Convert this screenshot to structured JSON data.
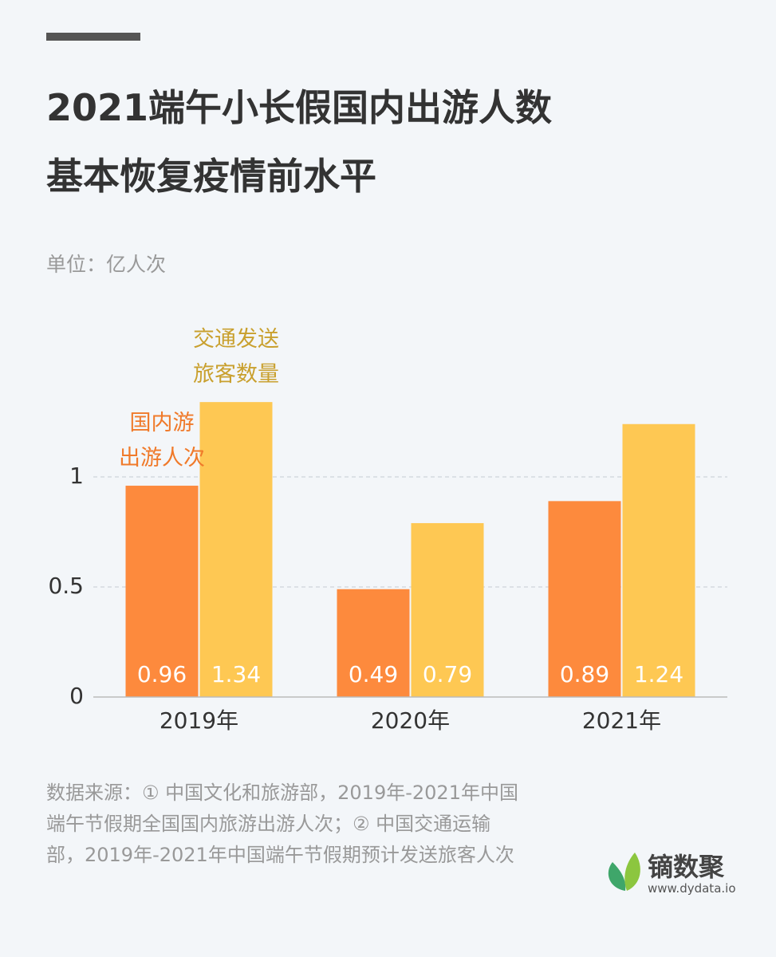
{
  "chart_data": {
    "type": "bar",
    "title": "2021端午小长假国内出游人数\n基本恢复疫情前水平",
    "unit": "单位：亿人次",
    "categories": [
      "2019年",
      "2020年",
      "2021年"
    ],
    "series": [
      {
        "name": "国内游\n出游人次",
        "color": "#fd8a3d",
        "label_color": "#f07a2a",
        "values": [
          0.96,
          0.49,
          0.89
        ]
      },
      {
        "name": "交通发送\n旅客数量",
        "color": "#fec853",
        "label_color": "#c9a02e",
        "values": [
          1.34,
          0.79,
          1.24
        ]
      }
    ],
    "ylim": [
      0,
      1.5
    ],
    "yticks": [
      0,
      0.5,
      1
    ],
    "grid": true,
    "source": "数据来源：① 中国文化和旅游部，2019年-2021年中国端午节假期全国国内旅游出游人次；② 中国交通运输部，2019年-2021年中国端午节假期预计发送旅客人次",
    "logo": {
      "name": "镝数聚",
      "url": "www.dydata.io"
    }
  }
}
